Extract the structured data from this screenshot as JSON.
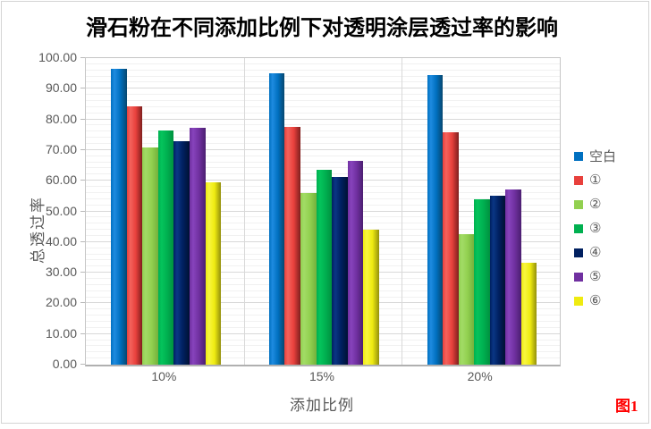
{
  "chart_data": {
    "type": "bar",
    "title": "滑石粉在不同添加比例下对透明涂层透过率的影响",
    "xlabel": "添加比例",
    "ylabel": "总透过率",
    "categories": [
      "10%",
      "15%",
      "20%"
    ],
    "series": [
      {
        "name": "空白",
        "values": [
          96.4,
          95.0,
          94.6
        ],
        "color": "#0070C0",
        "color_light": "#1E8BE0",
        "color_dark": "#07476F"
      },
      {
        "name": "①",
        "values": [
          84.2,
          77.6,
          75.8
        ],
        "color": "#E8403C",
        "color_light": "#F4625C",
        "color_dark": "#7E1F1E"
      },
      {
        "name": "②",
        "values": [
          70.9,
          56.1,
          42.5
        ],
        "color": "#92D050",
        "color_light": "#A2DC66",
        "color_dark": "#74B13C"
      },
      {
        "name": "③",
        "values": [
          76.3,
          63.6,
          53.9
        ],
        "color": "#00B050",
        "color_light": "#04C45C",
        "color_dark": "#00913F"
      },
      {
        "name": "④",
        "values": [
          72.9,
          61.2,
          55.1
        ],
        "color": "#002060",
        "color_light": "#0A3685",
        "color_dark": "#001133"
      },
      {
        "name": "⑤",
        "values": [
          77.2,
          66.6,
          57.2
        ],
        "color": "#7030A0",
        "color_light": "#8743BC",
        "color_dark": "#4B1F70"
      },
      {
        "name": "⑥",
        "values": [
          59.6,
          43.9,
          33.2
        ],
        "color": "#EFEB10",
        "color_light": "#F8F540",
        "color_dark": "#93900D"
      }
    ],
    "ylim": [
      0,
      100
    ],
    "y_major_step": 10,
    "y_minor_step": 2,
    "y_tick_decimals": 2,
    "grid": true,
    "legend_position": "right"
  },
  "figure": {
    "label": "图1",
    "label_color": "#FF0000"
  }
}
